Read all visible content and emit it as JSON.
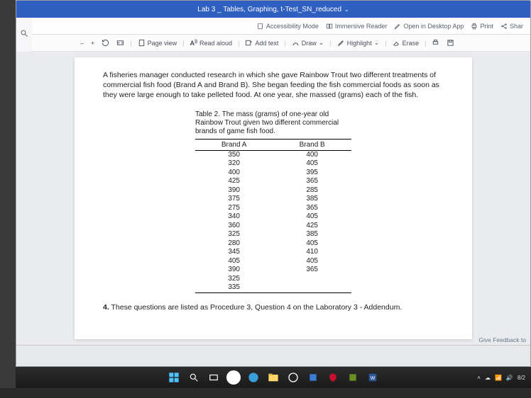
{
  "window": {
    "title": "Lab 3 _ Tables, Graphing, t-Test_SN_reduced",
    "dropdown_glyph": "⌄"
  },
  "topbar": {
    "accessibility": "Accessibility Mode",
    "immersive": "Immersive Reader",
    "open_desktop": "Open in Desktop App",
    "print": "Print",
    "share": "Shar"
  },
  "toolbar": {
    "zoom_out": "–",
    "zoom_in": "+",
    "page_view": "Page view",
    "read_aloud": "Read aloud",
    "add_text": "Add text",
    "draw": "Draw",
    "highlight": "Highlight",
    "erase": "Erase",
    "chevron": "⌄"
  },
  "document": {
    "paragraph": "A fisheries manager conducted research in which she gave Rainbow Trout two different treatments of commercial fish food (Brand A and Brand B). She began feeding the fish commercial foods as soon as they were large enough to take pelleted food. At one year, she massed (grams) each of the fish.",
    "table_caption": "Table 2. The mass (grams) of one-year old Rainbow Trout given two different commercial brands of game fish food.",
    "table": {
      "headers": [
        "Brand A",
        "Brand B"
      ],
      "brand_a": [
        350,
        320,
        400,
        425,
        390,
        375,
        275,
        340,
        360,
        325,
        280,
        345,
        405,
        390,
        325,
        335
      ],
      "brand_b": [
        400,
        405,
        395,
        365,
        285,
        385,
        365,
        405,
        425,
        385,
        405,
        410,
        405,
        365
      ]
    },
    "question4_num": "4.",
    "question4_text": " These questions are listed as Procedure 3, Question 4 on the Laboratory 3 - Addendum.",
    "feedback": "Give Feedback to"
  },
  "colors": {
    "title_bg": "#2f5fc0",
    "accent": "#2f5fc0",
    "page_bg": "#ffffff",
    "canvas_bg": "#e9ebee"
  },
  "tray": {
    "time": "8/2"
  }
}
